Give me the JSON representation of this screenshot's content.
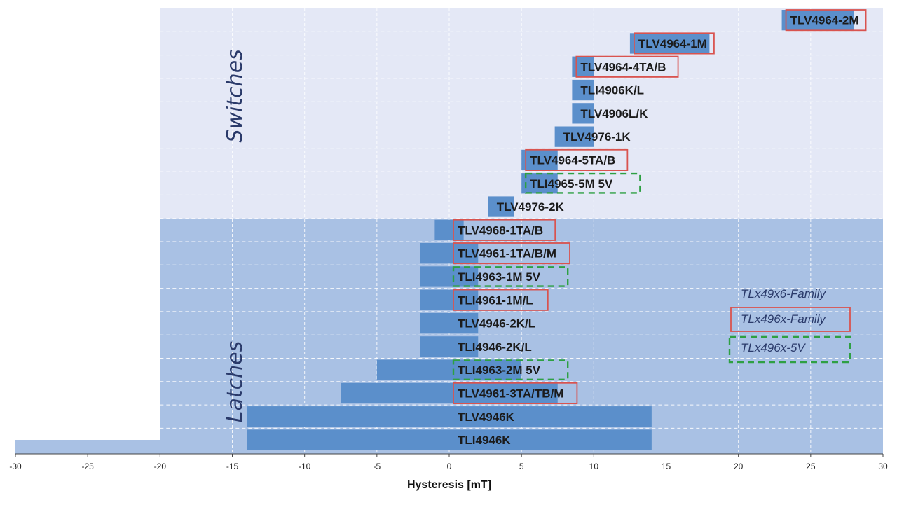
{
  "chart_data": {
    "type": "bar",
    "orientation": "horizontal",
    "xlabel": "Hysteresis [mT]",
    "xlim": [
      -30,
      30
    ],
    "xticks": [
      -30,
      -25,
      -20,
      -15,
      -10,
      -5,
      0,
      5,
      10,
      15,
      20,
      25,
      30
    ],
    "grid": true,
    "regions": [
      {
        "label": "Switches"
      },
      {
        "label": "Latches"
      }
    ],
    "bars": [
      {
        "label": "TLV4964-2M",
        "start": 23,
        "end": 28,
        "region": "Switches",
        "family": "TLx496x-Family"
      },
      {
        "label": "TLV4964-1M",
        "start": 12.5,
        "end": 18,
        "region": "Switches",
        "family": "TLx496x-Family"
      },
      {
        "label": "TLV4964-4TA/B",
        "start": 8.5,
        "end": 10,
        "region": "Switches",
        "family": "TLx496x-Family"
      },
      {
        "label": "TLI4906K/L",
        "start": 8.5,
        "end": 10,
        "region": "Switches",
        "family": "TLx49x6-Family"
      },
      {
        "label": "TLV4906L/K",
        "start": 8.5,
        "end": 10,
        "region": "Switches",
        "family": "TLx49x6-Family"
      },
      {
        "label": "TLV4976-1K",
        "start": 7.3,
        "end": 10,
        "region": "Switches",
        "family": "TLx49x6-Family"
      },
      {
        "label": "TLV4964-5TA/B",
        "start": 5,
        "end": 7.5,
        "region": "Switches",
        "family": "TLx496x-Family"
      },
      {
        "label": "TLI4965-5M 5V",
        "start": 5,
        "end": 7.5,
        "region": "Switches",
        "family": "TLx496x-5V"
      },
      {
        "label": "TLV4976-2K",
        "start": 2.7,
        "end": 4.5,
        "region": "Switches",
        "family": "TLx49x6-Family"
      },
      {
        "label": "TLV4968-1TA/B",
        "start": -1,
        "end": 1,
        "region": "Latches",
        "family": "TLx496x-Family"
      },
      {
        "label": "TLV4961-1TA/B/M",
        "start": -2,
        "end": 2,
        "region": "Latches",
        "family": "TLx496x-Family"
      },
      {
        "label": "TLI4963-1M 5V",
        "start": -2,
        "end": 2,
        "region": "Latches",
        "family": "TLx496x-5V"
      },
      {
        "label": "TLI4961-1M/L",
        "start": -2,
        "end": 2,
        "region": "Latches",
        "family": "TLx496x-Family"
      },
      {
        "label": "TLV4946-2K/L",
        "start": -2,
        "end": 2,
        "region": "Latches",
        "family": "TLx49x6-Family"
      },
      {
        "label": "TLI4946-2K/L",
        "start": -2,
        "end": 2,
        "region": "Latches",
        "family": "TLx49x6-Family"
      },
      {
        "label": "TLI4963-2M 5V",
        "start": -5,
        "end": 5,
        "region": "Latches",
        "family": "TLx496x-5V"
      },
      {
        "label": "TLV4961-3TA/TB/M",
        "start": -7.5,
        "end": 7.5,
        "region": "Latches",
        "family": "TLx496x-Family"
      },
      {
        "label": "TLV4946K",
        "start": -14,
        "end": 14,
        "region": "Latches",
        "family": "TLx49x6-Family"
      },
      {
        "label": "TLI4946K",
        "start": -14,
        "end": 14,
        "region": "Latches",
        "family": "TLx49x6-Family"
      }
    ],
    "legend": {
      "placement": "right",
      "entries": [
        {
          "label": "TLx49x6-Family",
          "style": "none"
        },
        {
          "label": "TLx496x-Family",
          "style": "solid-red-box",
          "color": "#d9534f"
        },
        {
          "label": "TLx496x-5V",
          "style": "dashed-green-box",
          "color": "#2ea043"
        }
      ]
    },
    "colors": {
      "bar": "#5b8fcb",
      "switches_bg": "#e4e8f6",
      "latches_bg": "#a9c1e4",
      "red_box": "#d9534f",
      "green_box": "#2ea043"
    }
  }
}
